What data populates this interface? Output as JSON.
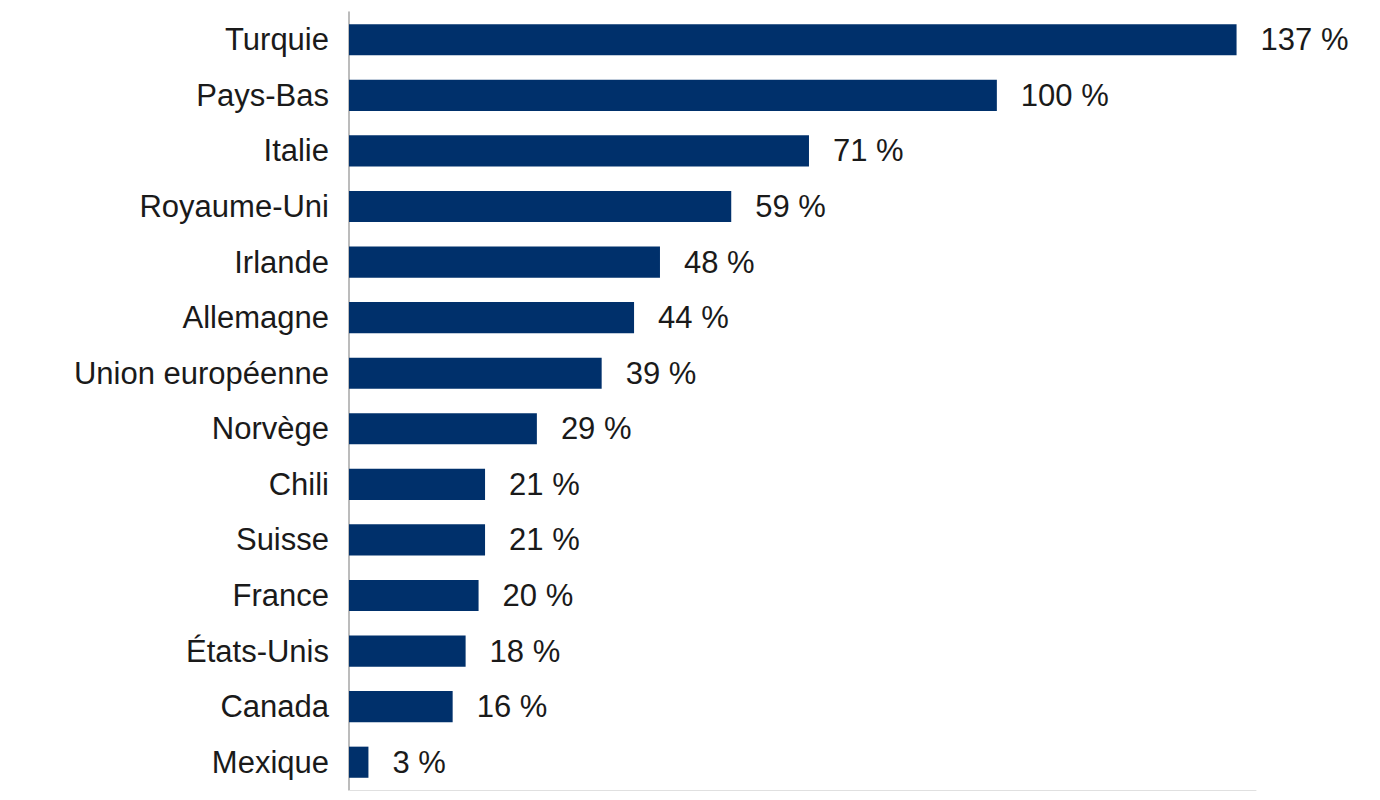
{
  "chart_data": {
    "type": "bar",
    "orientation": "horizontal",
    "categories": [
      "Turquie",
      "Pays-Bas",
      "Italie",
      "Royaume-Uni",
      "Irlande",
      "Allemagne",
      "Union européenne",
      "Norvège",
      "Chili",
      "Suisse",
      "France",
      "États-Unis",
      "Canada",
      "Mexique"
    ],
    "values": [
      137,
      100,
      71,
      59,
      48,
      44,
      39,
      29,
      21,
      21,
      20,
      18,
      16,
      3
    ],
    "value_labels": [
      "137 %",
      "100 %",
      "71 %",
      "59 %",
      "48 %",
      "44 %",
      "39 %",
      "29 %",
      "21 %",
      "21 %",
      "20 %",
      "18 %",
      "16 %",
      "3 %"
    ],
    "color": "#00306b",
    "xlim": [
      0,
      140
    ],
    "grid": false,
    "data_labels": true,
    "tick_labels": "y"
  }
}
